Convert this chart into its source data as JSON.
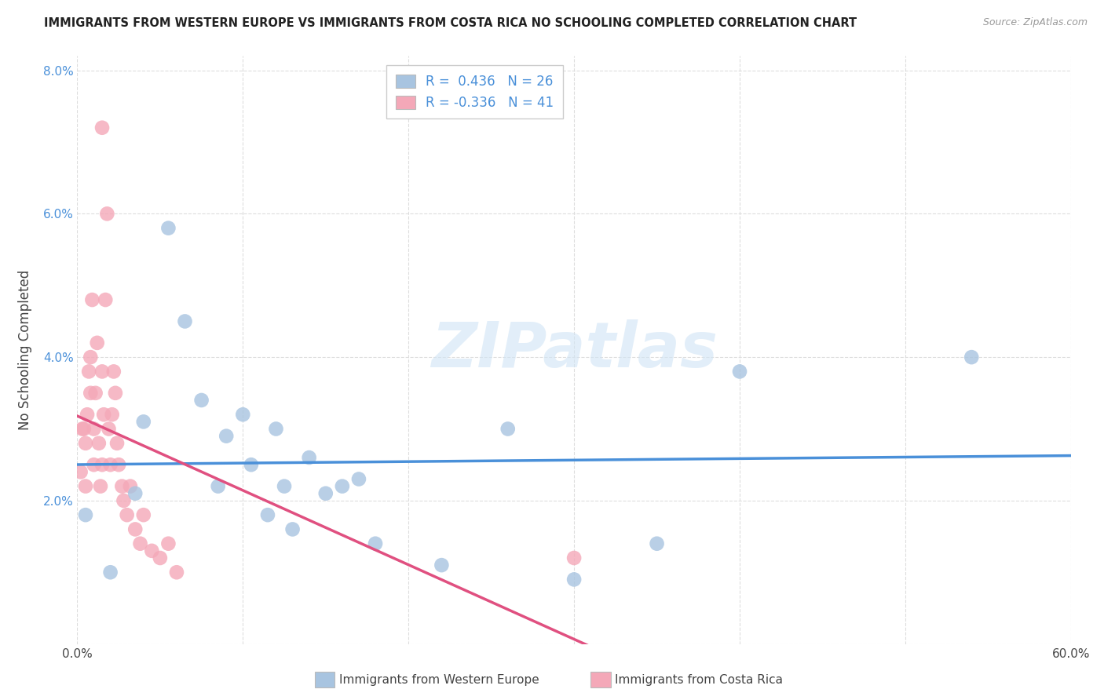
{
  "title": "IMMIGRANTS FROM WESTERN EUROPE VS IMMIGRANTS FROM COSTA RICA NO SCHOOLING COMPLETED CORRELATION CHART",
  "source": "Source: ZipAtlas.com",
  "ylabel": "No Schooling Completed",
  "xlabel_blue": "Immigrants from Western Europe",
  "xlabel_pink": "Immigrants from Costa Rica",
  "R_blue": 0.436,
  "N_blue": 26,
  "R_pink": -0.336,
  "N_pink": 41,
  "xlim": [
    0.0,
    0.6
  ],
  "ylim": [
    0.0,
    0.082
  ],
  "xticks": [
    0.0,
    0.1,
    0.2,
    0.3,
    0.4,
    0.5,
    0.6
  ],
  "yticks": [
    0.0,
    0.02,
    0.04,
    0.06,
    0.08
  ],
  "ytick_labels": [
    "",
    "2.0%",
    "4.0%",
    "6.0%",
    "8.0%"
  ],
  "xtick_labels": [
    "0.0%",
    "",
    "",
    "",
    "",
    "",
    "60.0%"
  ],
  "blue_color": "#a8c4e0",
  "pink_color": "#f4a8b8",
  "line_blue": "#4a90d9",
  "line_pink": "#e05080",
  "watermark": "ZIPatlas",
  "blue_scatter_x": [
    0.005,
    0.02,
    0.035,
    0.04,
    0.055,
    0.065,
    0.075,
    0.085,
    0.09,
    0.1,
    0.105,
    0.115,
    0.12,
    0.125,
    0.13,
    0.14,
    0.15,
    0.16,
    0.17,
    0.18,
    0.22,
    0.26,
    0.3,
    0.35,
    0.4,
    0.54
  ],
  "blue_scatter_y": [
    0.018,
    0.01,
    0.021,
    0.031,
    0.058,
    0.045,
    0.034,
    0.022,
    0.029,
    0.032,
    0.025,
    0.018,
    0.03,
    0.022,
    0.016,
    0.026,
    0.021,
    0.022,
    0.023,
    0.014,
    0.011,
    0.03,
    0.009,
    0.014,
    0.038,
    0.04
  ],
  "pink_scatter_x": [
    0.002,
    0.003,
    0.004,
    0.005,
    0.005,
    0.006,
    0.007,
    0.008,
    0.008,
    0.009,
    0.01,
    0.01,
    0.011,
    0.012,
    0.013,
    0.014,
    0.015,
    0.015,
    0.016,
    0.017,
    0.018,
    0.019,
    0.02,
    0.021,
    0.022,
    0.023,
    0.024,
    0.025,
    0.027,
    0.028,
    0.03,
    0.032,
    0.035,
    0.038,
    0.04,
    0.045,
    0.05,
    0.055,
    0.06,
    0.3,
    0.015
  ],
  "pink_scatter_y": [
    0.024,
    0.03,
    0.03,
    0.022,
    0.028,
    0.032,
    0.038,
    0.035,
    0.04,
    0.048,
    0.025,
    0.03,
    0.035,
    0.042,
    0.028,
    0.022,
    0.038,
    0.025,
    0.032,
    0.048,
    0.06,
    0.03,
    0.025,
    0.032,
    0.038,
    0.035,
    0.028,
    0.025,
    0.022,
    0.02,
    0.018,
    0.022,
    0.016,
    0.014,
    0.018,
    0.013,
    0.012,
    0.014,
    0.01,
    0.012,
    0.072
  ],
  "background_color": "#ffffff",
  "grid_color": "#dddddd"
}
